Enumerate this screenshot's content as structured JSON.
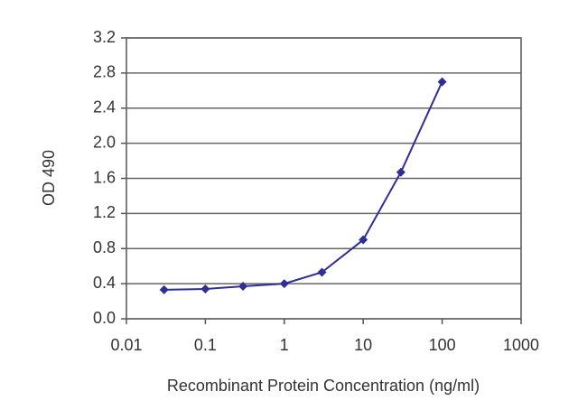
{
  "chart_data": {
    "type": "line",
    "x_label": "Recombinant Protein Concentration (ng/ml)",
    "y_label": "OD 490",
    "log_x": true,
    "grid": true,
    "color": "#2e2e96",
    "x": [
      0.03,
      0.1,
      0.3,
      1,
      3,
      10,
      30,
      100
    ],
    "values": [
      0.33,
      0.34,
      0.37,
      0.4,
      0.53,
      0.9,
      1.67,
      2.7
    ],
    "xlim": [
      0.01,
      1000
    ],
    "xticks": [
      0.01,
      0.1,
      1,
      10,
      100,
      1000
    ],
    "ylim": [
      0,
      3.2
    ],
    "yticks": [
      {
        "value": 0,
        "label": "0.0"
      },
      0.4,
      0.8,
      1.2,
      1.6,
      {
        "value": 2,
        "label": "2.0"
      },
      2.4,
      2.8,
      3.2
    ]
  }
}
